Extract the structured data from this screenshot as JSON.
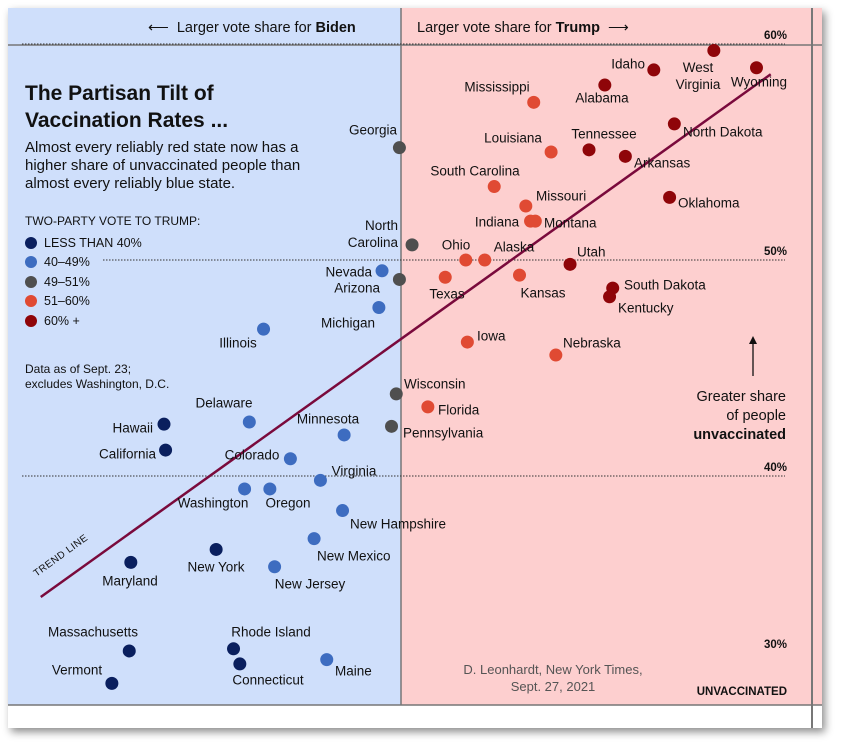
{
  "header": {
    "left_arrow_text": "Larger vote share for ",
    "left_arrow_bold": "Biden",
    "right_arrow_text": "Larger vote share for ",
    "right_arrow_bold": "Trump"
  },
  "title": "The Partisan Tilt of Vaccination Rates ...",
  "title_line1": "The Partisan Tilt of",
  "title_line2": "Vaccination Rates ...",
  "subtitle": "Almost every reliably red state now has a higher share of unvaccinated people than almost every reliably blue state.",
  "legend": {
    "title": "TWO-PARTY VOTE TO TRUMP:",
    "items": [
      {
        "label": "LESS THAN 40%",
        "color": "#0a1f5e"
      },
      {
        "label": "40–49%",
        "color": "#3d6cc0"
      },
      {
        "label": "49–51%",
        "color": "#4f4f4f"
      },
      {
        "label": "51–60%",
        "color": "#e04a33"
      },
      {
        "label": "60% +",
        "color": "#8f0509"
      }
    ]
  },
  "note_line1": "Data as of Sept. 23;",
  "note_line2": "excludes Washington, D.C.",
  "annotation": {
    "line1": "Greater share",
    "line2": "of people",
    "line3": "unvaccinated"
  },
  "credit_line1": "D. Leonhardt, New York Times,",
  "credit_line2": "Sept. 27, 2021",
  "trend_label": "TREND LINE",
  "colors": {
    "biden_bg": "#cfdffb",
    "trump_bg": "#fdcfcf",
    "trend": "#7a0a3c"
  },
  "chart_data": {
    "type": "scatter",
    "title": "The Partisan Tilt of Vaccination Rates ...",
    "xlabel": "Two-party vote to Trump",
    "ylabel": "Unvaccinated",
    "x_divider": 50,
    "ylim": [
      30,
      60
    ],
    "y_ticks": [
      {
        "value": 60,
        "label": "60%"
      },
      {
        "value": 50,
        "label": "50%"
      },
      {
        "value": 40,
        "label": "40%"
      },
      {
        "value": 30,
        "label": "30%",
        "sublabel": "UNVACCINATED"
      }
    ],
    "trend_line": [
      [
        27.2,
        34.4
      ],
      [
        73.4,
        58.6
      ]
    ],
    "points": [
      {
        "state": "West Virginia",
        "x": 69.8,
        "y": 59.7,
        "group": 4
      },
      {
        "state": "Idaho",
        "x": 66.0,
        "y": 58.8,
        "group": 4
      },
      {
        "state": "Wyoming",
        "x": 72.5,
        "y": 58.9,
        "group": 4
      },
      {
        "state": "Alabama",
        "x": 62.9,
        "y": 58.1,
        "group": 4
      },
      {
        "state": "Mississippi",
        "x": 58.4,
        "y": 57.3,
        "group": 3
      },
      {
        "state": "North Dakota",
        "x": 67.3,
        "y": 56.3,
        "group": 4
      },
      {
        "state": "Tennessee",
        "x": 61.9,
        "y": 55.1,
        "group": 4
      },
      {
        "state": "Louisiana",
        "x": 59.5,
        "y": 55.0,
        "group": 3
      },
      {
        "state": "Arkansas",
        "x": 64.2,
        "y": 54.8,
        "group": 4
      },
      {
        "state": "South Carolina",
        "x": 55.9,
        "y": 53.4,
        "group": 3
      },
      {
        "state": "Oklahoma",
        "x": 67.0,
        "y": 52.9,
        "group": 4
      },
      {
        "state": "Missouri",
        "x": 57.9,
        "y": 52.5,
        "group": 3
      },
      {
        "state": "Indiana",
        "x": 58.2,
        "y": 51.8,
        "group": 3
      },
      {
        "state": "Montana",
        "x": 58.5,
        "y": 51.8,
        "group": 3
      },
      {
        "state": "Georgia",
        "x": 49.9,
        "y": 55.2,
        "group": 2
      },
      {
        "state": "North Carolina",
        "x": 50.7,
        "y": 50.7,
        "group": 2
      },
      {
        "state": "Ohio",
        "x": 54.1,
        "y": 50.0,
        "group": 3
      },
      {
        "state": "Alaska",
        "x": 55.3,
        "y": 50.0,
        "group": 3
      },
      {
        "state": "Utah",
        "x": 60.7,
        "y": 49.8,
        "group": 4
      },
      {
        "state": "Texas",
        "x": 52.8,
        "y": 49.2,
        "group": 3
      },
      {
        "state": "Kansas",
        "x": 57.5,
        "y": 49.3,
        "group": 3
      },
      {
        "state": "South Dakota",
        "x": 63.4,
        "y": 48.7,
        "group": 4
      },
      {
        "state": "Kentucky",
        "x": 63.2,
        "y": 48.3,
        "group": 4
      },
      {
        "state": "Nevada",
        "x": 48.8,
        "y": 49.5,
        "group": 1
      },
      {
        "state": "Arizona",
        "x": 49.9,
        "y": 49.1,
        "group": 2
      },
      {
        "state": "Michigan",
        "x": 48.6,
        "y": 47.8,
        "group": 1
      },
      {
        "state": "Illinois",
        "x": 41.3,
        "y": 46.8,
        "group": 1
      },
      {
        "state": "Iowa",
        "x": 54.2,
        "y": 46.2,
        "group": 3
      },
      {
        "state": "Nebraska",
        "x": 59.8,
        "y": 45.6,
        "group": 3
      },
      {
        "state": "Wisconsin",
        "x": 49.7,
        "y": 43.8,
        "group": 2
      },
      {
        "state": "Florida",
        "x": 51.7,
        "y": 43.2,
        "group": 3
      },
      {
        "state": "Pennsylvania",
        "x": 49.4,
        "y": 42.3,
        "group": 2
      },
      {
        "state": "Delaware",
        "x": 40.4,
        "y": 42.5,
        "group": 1
      },
      {
        "state": "Minnesota",
        "x": 46.4,
        "y": 41.9,
        "group": 1
      },
      {
        "state": "Hawaii",
        "x": 35.0,
        "y": 42.4,
        "group": 0
      },
      {
        "state": "California",
        "x": 35.1,
        "y": 41.2,
        "group": 0
      },
      {
        "state": "Colorado",
        "x": 43.0,
        "y": 40.8,
        "group": 1
      },
      {
        "state": "Virginia",
        "x": 44.9,
        "y": 39.8,
        "group": 1
      },
      {
        "state": "Washington",
        "x": 40.1,
        "y": 39.4,
        "group": 1
      },
      {
        "state": "Oregon",
        "x": 41.7,
        "y": 39.4,
        "group": 1
      },
      {
        "state": "New Hampshire",
        "x": 46.3,
        "y": 38.4,
        "group": 1
      },
      {
        "state": "New Mexico",
        "x": 44.5,
        "y": 37.1,
        "group": 1
      },
      {
        "state": "New York",
        "x": 38.3,
        "y": 36.6,
        "group": 0
      },
      {
        "state": "New Jersey",
        "x": 42.0,
        "y": 35.8,
        "group": 1
      },
      {
        "state": "Maryland",
        "x": 32.9,
        "y": 36.0,
        "group": 0
      },
      {
        "state": "Massachusetts",
        "x": 32.8,
        "y": 31.9,
        "group": 0
      },
      {
        "state": "Rhode Island",
        "x": 39.4,
        "y": 32.0,
        "group": 0
      },
      {
        "state": "Connecticut",
        "x": 39.8,
        "y": 31.3,
        "group": 0
      },
      {
        "state": "Maine",
        "x": 45.3,
        "y": 31.5,
        "group": 1
      },
      {
        "state": "Vermont",
        "x": 31.7,
        "y": 30.4,
        "group": 0
      }
    ]
  }
}
